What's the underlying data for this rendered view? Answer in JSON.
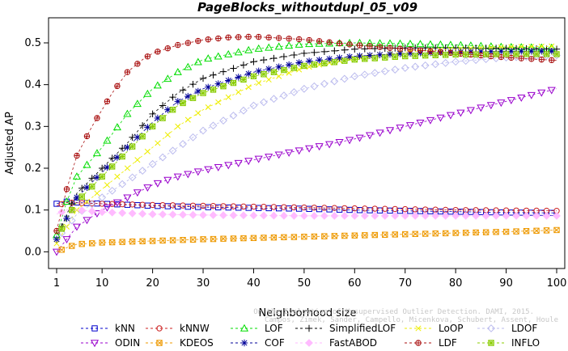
{
  "chart_data": {
    "type": "line",
    "title": "PageBlocks_withoutdupl_05_v09",
    "xlabel": "Neighborhood size",
    "ylabel": "Adjusted AP",
    "xlim": [
      1,
      100
    ],
    "ylim": [
      -0.04,
      0.56
    ],
    "xticks": [
      1,
      10,
      20,
      30,
      40,
      50,
      60,
      70,
      80,
      90,
      100
    ],
    "yticks": [
      0.0,
      0.1,
      0.2,
      0.3,
      0.4,
      0.5
    ],
    "ytick_labels": [
      "0.0",
      "0.1",
      "0.2",
      "0.3",
      "0.4",
      "0.5"
    ],
    "grid": false,
    "legend_position": "bottom",
    "watermark": [
      "Campos, Zimek, Sander, Campello, Micenkova, Schubert, Assent, Houle",
      "On the Evaluation of Unsupervised Outlier Detection. DAMI, 2015."
    ],
    "series": [
      {
        "name": "kNN",
        "color": "#0000cc",
        "marker": "square",
        "x": [
          1,
          3,
          5,
          10,
          20,
          30,
          40,
          50,
          60,
          70,
          80,
          90,
          100
        ],
        "y": [
          0.115,
          0.12,
          0.118,
          0.115,
          0.11,
          0.107,
          0.105,
          0.103,
          0.1,
          0.098,
          0.096,
          0.094,
          0.093
        ]
      },
      {
        "name": "kNNW",
        "color": "#cc2222",
        "marker": "circle",
        "x": [
          1,
          3,
          5,
          10,
          20,
          30,
          40,
          50,
          60,
          70,
          80,
          90,
          100
        ],
        "y": [
          0.11,
          0.118,
          0.117,
          0.115,
          0.112,
          0.11,
          0.108,
          0.106,
          0.104,
          0.102,
          0.1,
          0.099,
          0.098
        ]
      },
      {
        "name": "LOF",
        "color": "#00dd00",
        "marker": "triangle-up",
        "x": [
          1,
          3,
          5,
          10,
          15,
          20,
          25,
          30,
          40,
          50,
          60,
          70,
          80,
          90,
          100
        ],
        "y": [
          0.04,
          0.12,
          0.18,
          0.25,
          0.33,
          0.39,
          0.43,
          0.46,
          0.485,
          0.497,
          0.5,
          0.498,
          0.495,
          0.49,
          0.488
        ]
      },
      {
        "name": "SimplifiedLOF",
        "color": "#000000",
        "marker": "plus",
        "x": [
          1,
          3,
          5,
          10,
          15,
          20,
          25,
          30,
          40,
          50,
          60,
          70,
          80,
          90,
          100
        ],
        "y": [
          0.03,
          0.09,
          0.14,
          0.2,
          0.26,
          0.33,
          0.38,
          0.415,
          0.455,
          0.475,
          0.485,
          0.488,
          0.488,
          0.487,
          0.485
        ]
      },
      {
        "name": "LoOP",
        "color": "#eeee00",
        "marker": "x",
        "x": [
          1,
          3,
          5,
          10,
          15,
          20,
          25,
          30,
          40,
          50,
          60,
          70,
          80,
          90,
          100
        ],
        "y": [
          0.02,
          0.06,
          0.1,
          0.15,
          0.2,
          0.25,
          0.3,
          0.34,
          0.4,
          0.44,
          0.465,
          0.478,
          0.485,
          0.49,
          0.492
        ]
      },
      {
        "name": "LDOF",
        "color": "#bbbbee",
        "marker": "diamond",
        "x": [
          1,
          3,
          5,
          10,
          15,
          20,
          25,
          30,
          40,
          50,
          60,
          70,
          80,
          90,
          100
        ],
        "y": [
          0.03,
          0.06,
          0.09,
          0.13,
          0.17,
          0.21,
          0.25,
          0.29,
          0.35,
          0.39,
          0.42,
          0.44,
          0.455,
          0.465,
          0.47
        ]
      },
      {
        "name": "ODIN",
        "color": "#9900cc",
        "marker": "triangle-down",
        "x": [
          1,
          3,
          5,
          10,
          15,
          20,
          25,
          30,
          40,
          50,
          60,
          70,
          80,
          90,
          100
        ],
        "y": [
          0.0,
          0.03,
          0.06,
          0.1,
          0.13,
          0.16,
          0.18,
          0.195,
          0.22,
          0.245,
          0.27,
          0.3,
          0.33,
          0.36,
          0.39
        ]
      },
      {
        "name": "KDEOS",
        "color": "#ee9900",
        "marker": "square-x",
        "x": [
          1,
          3,
          5,
          10,
          20,
          30,
          40,
          50,
          60,
          70,
          80,
          90,
          100
        ],
        "y": [
          0.0,
          0.01,
          0.018,
          0.022,
          0.026,
          0.03,
          0.033,
          0.036,
          0.039,
          0.042,
          0.045,
          0.048,
          0.052
        ]
      },
      {
        "name": "COF",
        "color": "#000099",
        "marker": "asterisk",
        "x": [
          1,
          3,
          5,
          10,
          15,
          20,
          25,
          30,
          40,
          50,
          60,
          70,
          80,
          90,
          100
        ],
        "y": [
          0.03,
          0.08,
          0.13,
          0.19,
          0.25,
          0.31,
          0.36,
          0.39,
          0.43,
          0.455,
          0.468,
          0.475,
          0.478,
          0.48,
          0.48
        ]
      },
      {
        "name": "FastABOD",
        "color": "#ffbbff",
        "marker": "diamond-filled",
        "x": [
          1,
          3,
          5,
          10,
          20,
          30,
          40,
          50,
          60,
          70,
          80,
          90,
          100
        ],
        "y": [
          0.09,
          0.1,
          0.1,
          0.095,
          0.09,
          0.088,
          0.087,
          0.086,
          0.086,
          0.086,
          0.086,
          0.086,
          0.086
        ]
      },
      {
        "name": "LDF",
        "color": "#aa1111",
        "marker": "circle-plus",
        "x": [
          1,
          3,
          5,
          8,
          10,
          12,
          15,
          18,
          20,
          25,
          30,
          35,
          40,
          50,
          60,
          70,
          80,
          90,
          100
        ],
        "y": [
          0.05,
          0.15,
          0.23,
          0.3,
          0.34,
          0.38,
          0.43,
          0.46,
          0.475,
          0.495,
          0.507,
          0.513,
          0.515,
          0.508,
          0.495,
          0.485,
          0.475,
          0.465,
          0.458
        ]
      },
      {
        "name": "INFLO",
        "color": "#88cc00",
        "marker": "square-star",
        "x": [
          1,
          3,
          5,
          10,
          15,
          20,
          25,
          30,
          40,
          50,
          60,
          70,
          80,
          90,
          100
        ],
        "y": [
          0.03,
          0.08,
          0.12,
          0.18,
          0.24,
          0.3,
          0.35,
          0.38,
          0.42,
          0.445,
          0.46,
          0.468,
          0.472,
          0.473,
          0.473
        ]
      }
    ]
  }
}
